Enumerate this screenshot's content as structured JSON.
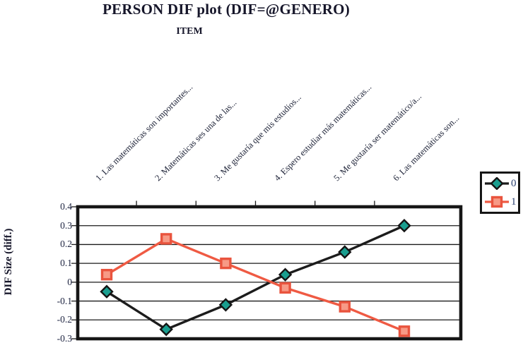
{
  "title": "PERSON DIF plot (DIF=@GENERO)",
  "subtitle": "ITEM",
  "y_axis_title": "DIF Size (diff.)",
  "colors": {
    "frame": "#161616",
    "gridline": "#1a1a1a",
    "text": "#16162a",
    "tick_text": "#1d2340",
    "legend_text": "#2a4070"
  },
  "chart_data": {
    "type": "line",
    "title": "PERSON DIF plot (DIF=@GENERO)",
    "xlabel": "ITEM",
    "ylabel": "DIF Size (diff.)",
    "categories": [
      "1. Las matemáticas son importantes...",
      "2. Matemáticas ses una de las...",
      "3. Me gustaría que mis estudios...",
      "4. Espero estudiar más matemáticas...",
      "5. Me gustaría ser matemático/a...",
      "6. Las matemáticas son..."
    ],
    "series": [
      {
        "name": "0",
        "marker": "diamond",
        "line_color": "#1c1c1c",
        "marker_fill": "#1a9e8f",
        "marker_stroke": "#141414",
        "values": [
          -0.05,
          -0.25,
          -0.12,
          0.04,
          0.16,
          0.3
        ]
      },
      {
        "name": "1",
        "marker": "square",
        "line_color": "#ef5a43",
        "marker_fill": "#f79a86",
        "marker_stroke": "#e9543e",
        "values": [
          0.04,
          0.23,
          0.1,
          -0.03,
          -0.13,
          -0.26
        ]
      }
    ],
    "ylim": [
      -0.3,
      0.4
    ],
    "ytick_labels": [
      "0.4",
      "0.3",
      "0.2",
      "0.1",
      "0",
      "-0.1",
      "-0.2",
      "-0.3"
    ],
    "grid": true,
    "legend_position": "top-right"
  }
}
